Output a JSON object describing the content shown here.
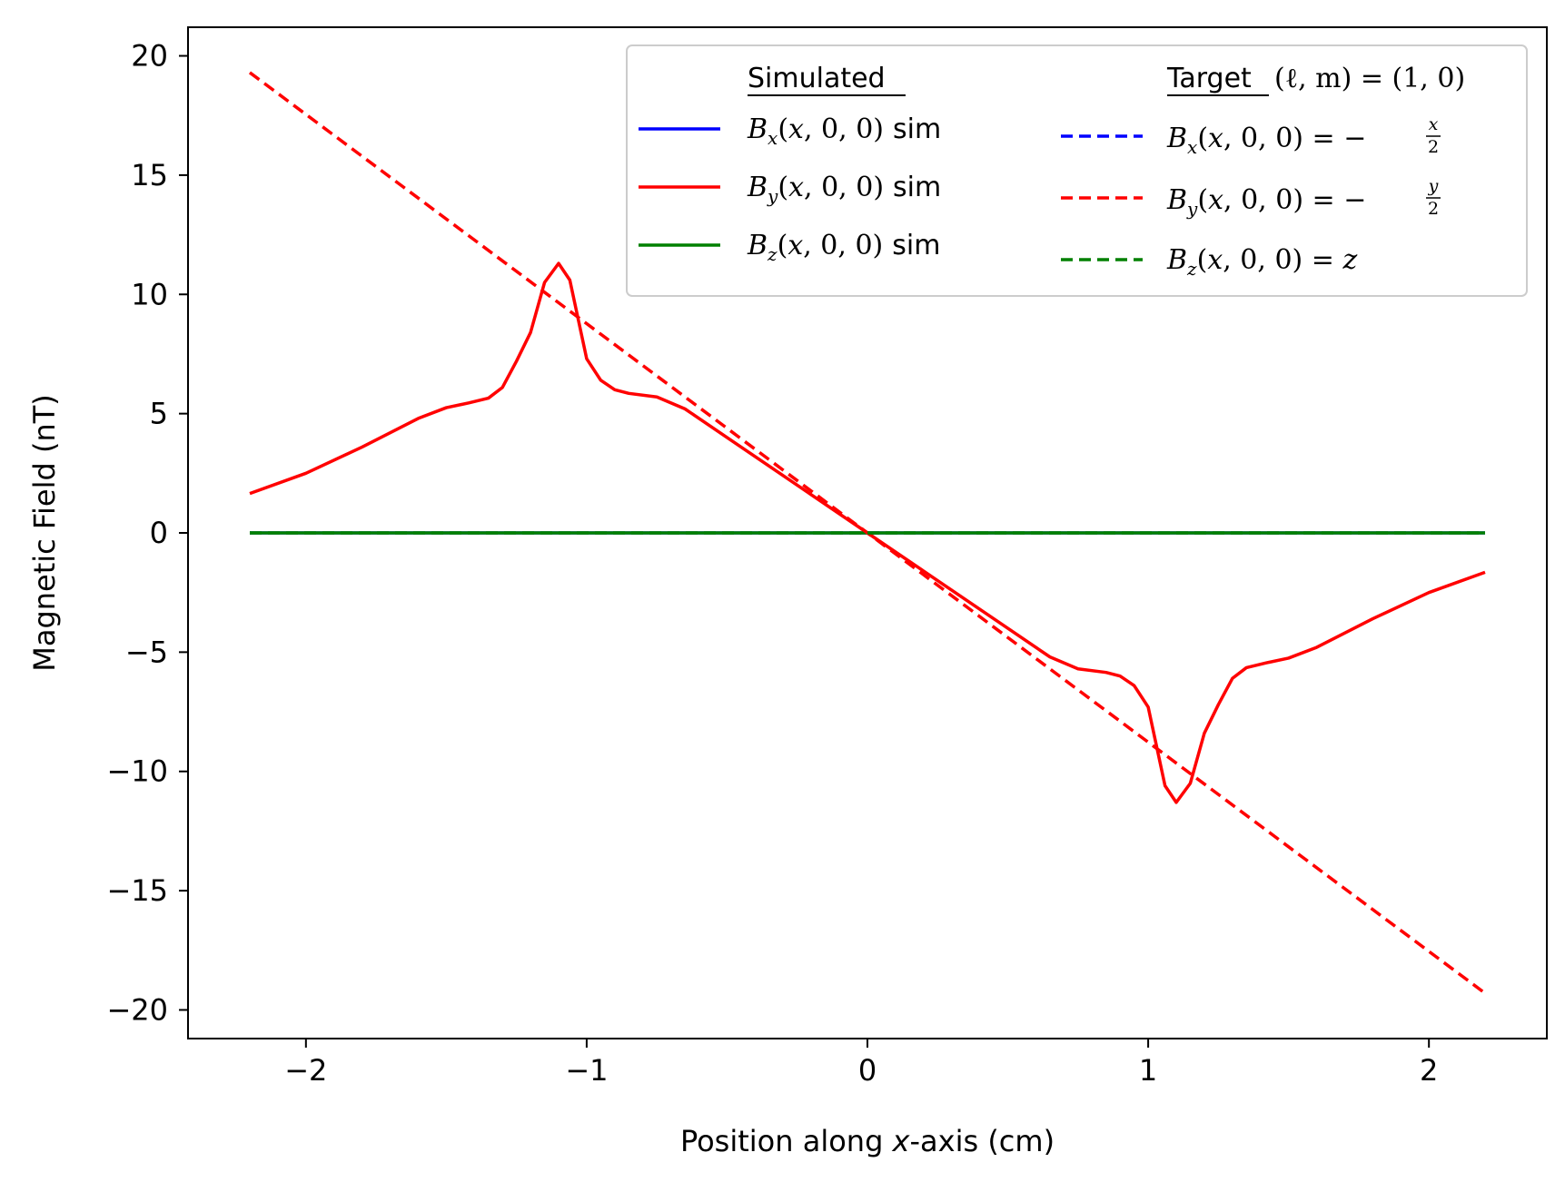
{
  "chart_data": {
    "type": "line",
    "xlabel_prefix": "Position along ",
    "xlabel_var": "x",
    "xlabel_suffix": "-axis (cm)",
    "ylabel": "Magnetic Field (nT)",
    "xlim": [
      -2.42,
      2.42
    ],
    "ylim": [
      -21.2,
      21.2
    ],
    "xticks": [
      -2,
      -1,
      0,
      1,
      2
    ],
    "yticks": [
      -20,
      -15,
      -10,
      -5,
      0,
      5,
      10,
      15,
      20
    ],
    "xtick_labels": [
      "−2",
      "−1",
      "0",
      "1",
      "2"
    ],
    "ytick_labels": [
      "−20",
      "−15",
      "−10",
      "−5",
      "0",
      "5",
      "10",
      "15",
      "20"
    ],
    "grid": false,
    "legend_placement": "upper-right",
    "legend_headers": {
      "simulated": "Simulated",
      "target_word": "Target",
      "target_math": "(ℓ, m) = (1, 0)"
    },
    "colors": {
      "blue": "#0000ff",
      "red": "#ff0000",
      "green": "#008000"
    },
    "series": [
      {
        "name": "Bx(x,0,0) sim",
        "color": "#0000ff",
        "style": "solid",
        "x": [
          -2.2,
          2.2
        ],
        "y": [
          0,
          0
        ]
      },
      {
        "name": "By(x,0,0) sim",
        "color": "#ff0000",
        "style": "solid",
        "x": [
          -2.2,
          -2.0,
          -1.8,
          -1.6,
          -1.5,
          -1.42,
          -1.35,
          -1.3,
          -1.25,
          -1.2,
          -1.15,
          -1.1,
          -1.06,
          -1.0,
          -0.95,
          -0.9,
          -0.85,
          -0.75,
          -0.65,
          -0.5,
          -0.25,
          0,
          0.25,
          0.5,
          0.65,
          0.75,
          0.85,
          0.9,
          0.95,
          1.0,
          1.06,
          1.1,
          1.15,
          1.2,
          1.25,
          1.3,
          1.35,
          1.42,
          1.5,
          1.6,
          1.8,
          2.0,
          2.2
        ],
        "y": [
          1.65,
          2.5,
          3.6,
          4.8,
          5.25,
          5.45,
          5.65,
          6.1,
          7.2,
          8.4,
          10.5,
          11.3,
          10.6,
          7.3,
          6.4,
          6.0,
          5.85,
          5.7,
          5.2,
          4.0,
          2.0,
          0,
          -2.0,
          -4.0,
          -5.2,
          -5.7,
          -5.85,
          -6.0,
          -6.4,
          -7.3,
          -10.6,
          -11.3,
          -10.5,
          -8.4,
          -7.2,
          -6.1,
          -5.65,
          -5.45,
          -5.25,
          -4.8,
          -3.6,
          -2.5,
          -1.65
        ]
      },
      {
        "name": "Bz(x,0,0) sim",
        "color": "#008000",
        "style": "solid",
        "x": [
          -2.2,
          2.2
        ],
        "y": [
          0,
          0
        ]
      },
      {
        "name": "Bx(x,0,0) = −x/2",
        "color": "#0000ff",
        "style": "dashed",
        "x": [],
        "y": []
      },
      {
        "name": "By(x,0,0) = −y/2",
        "color": "#ff0000",
        "style": "dashed",
        "x": [
          -2.2,
          2.2
        ],
        "y": [
          19.3,
          -19.3
        ]
      },
      {
        "name": "Bz(x,0,0) = z",
        "color": "#008000",
        "style": "dashed",
        "x": [
          -2.2,
          2.2
        ],
        "y": [
          0,
          0
        ]
      }
    ]
  }
}
